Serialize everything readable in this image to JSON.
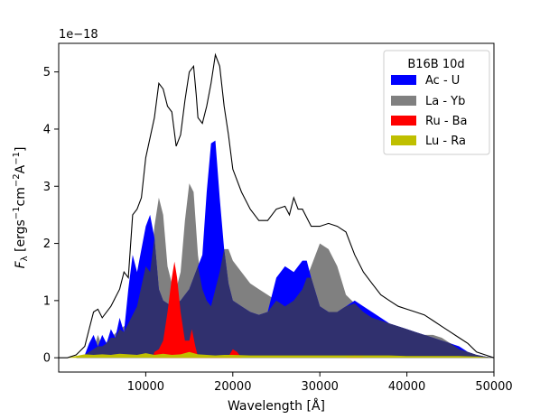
{
  "chart_data": {
    "type": "area",
    "title": "",
    "xlabel": "Wavelength [Å]",
    "ylabel_parts": {
      "f": "F",
      "sub": "λ",
      "open": " [ergs",
      "e1": "−1",
      "cm": "cm",
      "e2": "−2",
      "a": "A",
      "e3": "−1",
      "close": "]"
    },
    "offset_text": "1e−18",
    "xlim": [
      0,
      50000
    ],
    "ylim": [
      -0.25,
      5.5
    ],
    "x_ticks": [
      10000,
      20000,
      30000,
      40000,
      50000
    ],
    "x_tick_labels": [
      "10000",
      "20000",
      "30000",
      "40000",
      "50000"
    ],
    "y_ticks": [
      0,
      1,
      2,
      3,
      4,
      5
    ],
    "y_tick_labels": [
      "0",
      "1",
      "2",
      "3",
      "4",
      "5"
    ],
    "legend": {
      "title": "B16B 10d",
      "placement": "upper right",
      "entries": [
        "Ac - U",
        "La - Yb",
        "Ru - Ba",
        "Lu - Ra"
      ]
    },
    "colors": {
      "Ac - U": "#0000ff",
      "La - Yb": "#808080",
      "Ru - Ba": "#ff0000",
      "Lu - Ra": "#bfbf00",
      "overlap": "#30306e",
      "total": "#000000"
    },
    "series": [
      {
        "name": "La - Yb",
        "x": [
          1000,
          2000,
          3000,
          4000,
          4500,
          5000,
          6000,
          7000,
          8000,
          9000,
          10000,
          10500,
          11000,
          11500,
          12000,
          12500,
          13000,
          13500,
          14000,
          14500,
          15000,
          15500,
          16000,
          16500,
          17000,
          17500,
          18000,
          18500,
          19000,
          19500,
          20000,
          21000,
          22000,
          23000,
          24000,
          25000,
          26000,
          27000,
          28000,
          29000,
          30000,
          31000,
          32000,
          33000,
          34000,
          35000,
          36000,
          37000,
          38000,
          39000,
          40000,
          41000,
          42000,
          43000,
          44000,
          45000,
          46000,
          47000,
          48000,
          49000,
          50000
        ],
        "values": [
          0,
          0,
          0.05,
          0.15,
          0.4,
          0.2,
          0.35,
          0.5,
          0.6,
          0.9,
          1.6,
          1.5,
          2.3,
          2.8,
          2.5,
          1.6,
          1.3,
          1.2,
          1.5,
          2.4,
          3.05,
          2.9,
          1.8,
          1.2,
          1.0,
          0.9,
          1.2,
          1.5,
          1.9,
          1.9,
          1.7,
          1.5,
          1.3,
          1.2,
          1.1,
          1.0,
          0.9,
          1.0,
          1.2,
          1.6,
          2.0,
          1.9,
          1.6,
          1.1,
          0.95,
          0.8,
          0.7,
          0.65,
          0.6,
          0.55,
          0.5,
          0.45,
          0.4,
          0.4,
          0.35,
          0.25,
          0.15,
          0.1,
          0.05,
          0.02,
          0
        ]
      },
      {
        "name": "Ac - U",
        "x": [
          1000,
          2000,
          3000,
          3500,
          4000,
          4500,
          5000,
          5500,
          6000,
          6500,
          7000,
          7500,
          8000,
          8500,
          9000,
          9500,
          10000,
          10500,
          11000,
          11500,
          12000,
          13000,
          14000,
          15000,
          16000,
          16500,
          17000,
          17500,
          18000,
          18500,
          19000,
          19500,
          20000,
          21000,
          22000,
          23000,
          24000,
          25000,
          26000,
          27000,
          28000,
          28500,
          29000,
          30000,
          31000,
          32000,
          33000,
          34000,
          35000,
          36000,
          37000,
          38000,
          39000,
          40000,
          41000,
          42000,
          43000,
          44000,
          45000,
          46000,
          47000,
          48000,
          49000,
          50000
        ],
        "values": [
          0,
          0,
          0.05,
          0.25,
          0.4,
          0.2,
          0.4,
          0.25,
          0.5,
          0.35,
          0.7,
          0.45,
          1.2,
          1.8,
          1.5,
          1.9,
          2.3,
          2.5,
          2.1,
          1.2,
          1.0,
          0.9,
          1.0,
          1.2,
          1.6,
          1.8,
          2.9,
          3.75,
          3.8,
          2.8,
          1.9,
          1.3,
          1.0,
          0.9,
          0.8,
          0.75,
          0.8,
          1.4,
          1.6,
          1.5,
          1.7,
          1.7,
          1.4,
          0.9,
          0.8,
          0.8,
          0.9,
          1.0,
          0.9,
          0.8,
          0.7,
          0.6,
          0.55,
          0.5,
          0.45,
          0.4,
          0.35,
          0.3,
          0.25,
          0.2,
          0.1,
          0.05,
          0.02,
          0
        ]
      },
      {
        "name": "Ru - Ba",
        "x": [
          10000,
          10800,
          11000,
          11500,
          12000,
          12500,
          13000,
          13300,
          13600,
          14000,
          14500,
          15000,
          15300,
          15700,
          16000,
          19500,
          20000,
          20500,
          21000,
          33000,
          34000,
          35000
        ],
        "values": [
          0,
          0,
          0.1,
          0.15,
          0.3,
          0.8,
          1.4,
          1.68,
          1.4,
          0.8,
          0.3,
          0.3,
          0.5,
          0.2,
          0.02,
          0.02,
          0.15,
          0.1,
          0,
          0,
          0.04,
          0
        ]
      },
      {
        "name": "Lu - Ra",
        "x": [
          1000,
          2000,
          3000,
          4000,
          5000,
          6000,
          7000,
          8000,
          9000,
          10000,
          11000,
          12000,
          13000,
          14000,
          15000,
          16000,
          17000,
          18000,
          19000,
          20000,
          22000,
          24000,
          26000,
          28000,
          30000,
          32000,
          34000,
          36000,
          38000,
          40000,
          42000,
          44000,
          46000,
          48000,
          50000
        ],
        "values": [
          0,
          0.03,
          0.06,
          0.05,
          0.06,
          0.05,
          0.07,
          0.06,
          0.05,
          0.08,
          0.05,
          0.07,
          0.05,
          0.06,
          0.1,
          0.06,
          0.05,
          0.04,
          0.05,
          0.05,
          0.04,
          0.04,
          0.04,
          0.04,
          0.04,
          0.04,
          0.04,
          0.04,
          0.04,
          0.03,
          0.03,
          0.03,
          0.03,
          0.02,
          0
        ]
      },
      {
        "name": "Total",
        "x": [
          0,
          1000,
          2000,
          3000,
          3500,
          4000,
          4500,
          5000,
          6000,
          7000,
          7500,
          8000,
          8500,
          9000,
          9500,
          10000,
          11000,
          11500,
          12000,
          12500,
          13000,
          13500,
          14000,
          14500,
          15000,
          15500,
          15800,
          16000,
          16500,
          17000,
          17500,
          18000,
          18500,
          19000,
          19500,
          20000,
          21000,
          22000,
          23000,
          24000,
          25000,
          26000,
          26500,
          27000,
          27500,
          28000,
          29000,
          30000,
          31000,
          32000,
          33000,
          34000,
          35000,
          36000,
          37000,
          38000,
          39000,
          40000,
          41000,
          42000,
          43000,
          44000,
          45000,
          46000,
          47000,
          48000,
          49000,
          50000
        ],
        "values": [
          0,
          0.0,
          0.05,
          0.2,
          0.5,
          0.8,
          0.85,
          0.7,
          0.9,
          1.2,
          1.5,
          1.4,
          2.5,
          2.6,
          2.8,
          3.5,
          4.2,
          4.8,
          4.7,
          4.4,
          4.3,
          3.7,
          3.9,
          4.5,
          5.0,
          5.1,
          4.6,
          4.2,
          4.1,
          4.4,
          4.8,
          5.3,
          5.1,
          4.4,
          3.9,
          3.3,
          2.9,
          2.6,
          2.4,
          2.4,
          2.6,
          2.65,
          2.5,
          2.8,
          2.6,
          2.6,
          2.3,
          2.3,
          2.35,
          2.3,
          2.2,
          1.8,
          1.5,
          1.3,
          1.1,
          1.0,
          0.9,
          0.85,
          0.8,
          0.75,
          0.65,
          0.55,
          0.45,
          0.35,
          0.25,
          0.1,
          0.05,
          0
        ]
      }
    ]
  }
}
